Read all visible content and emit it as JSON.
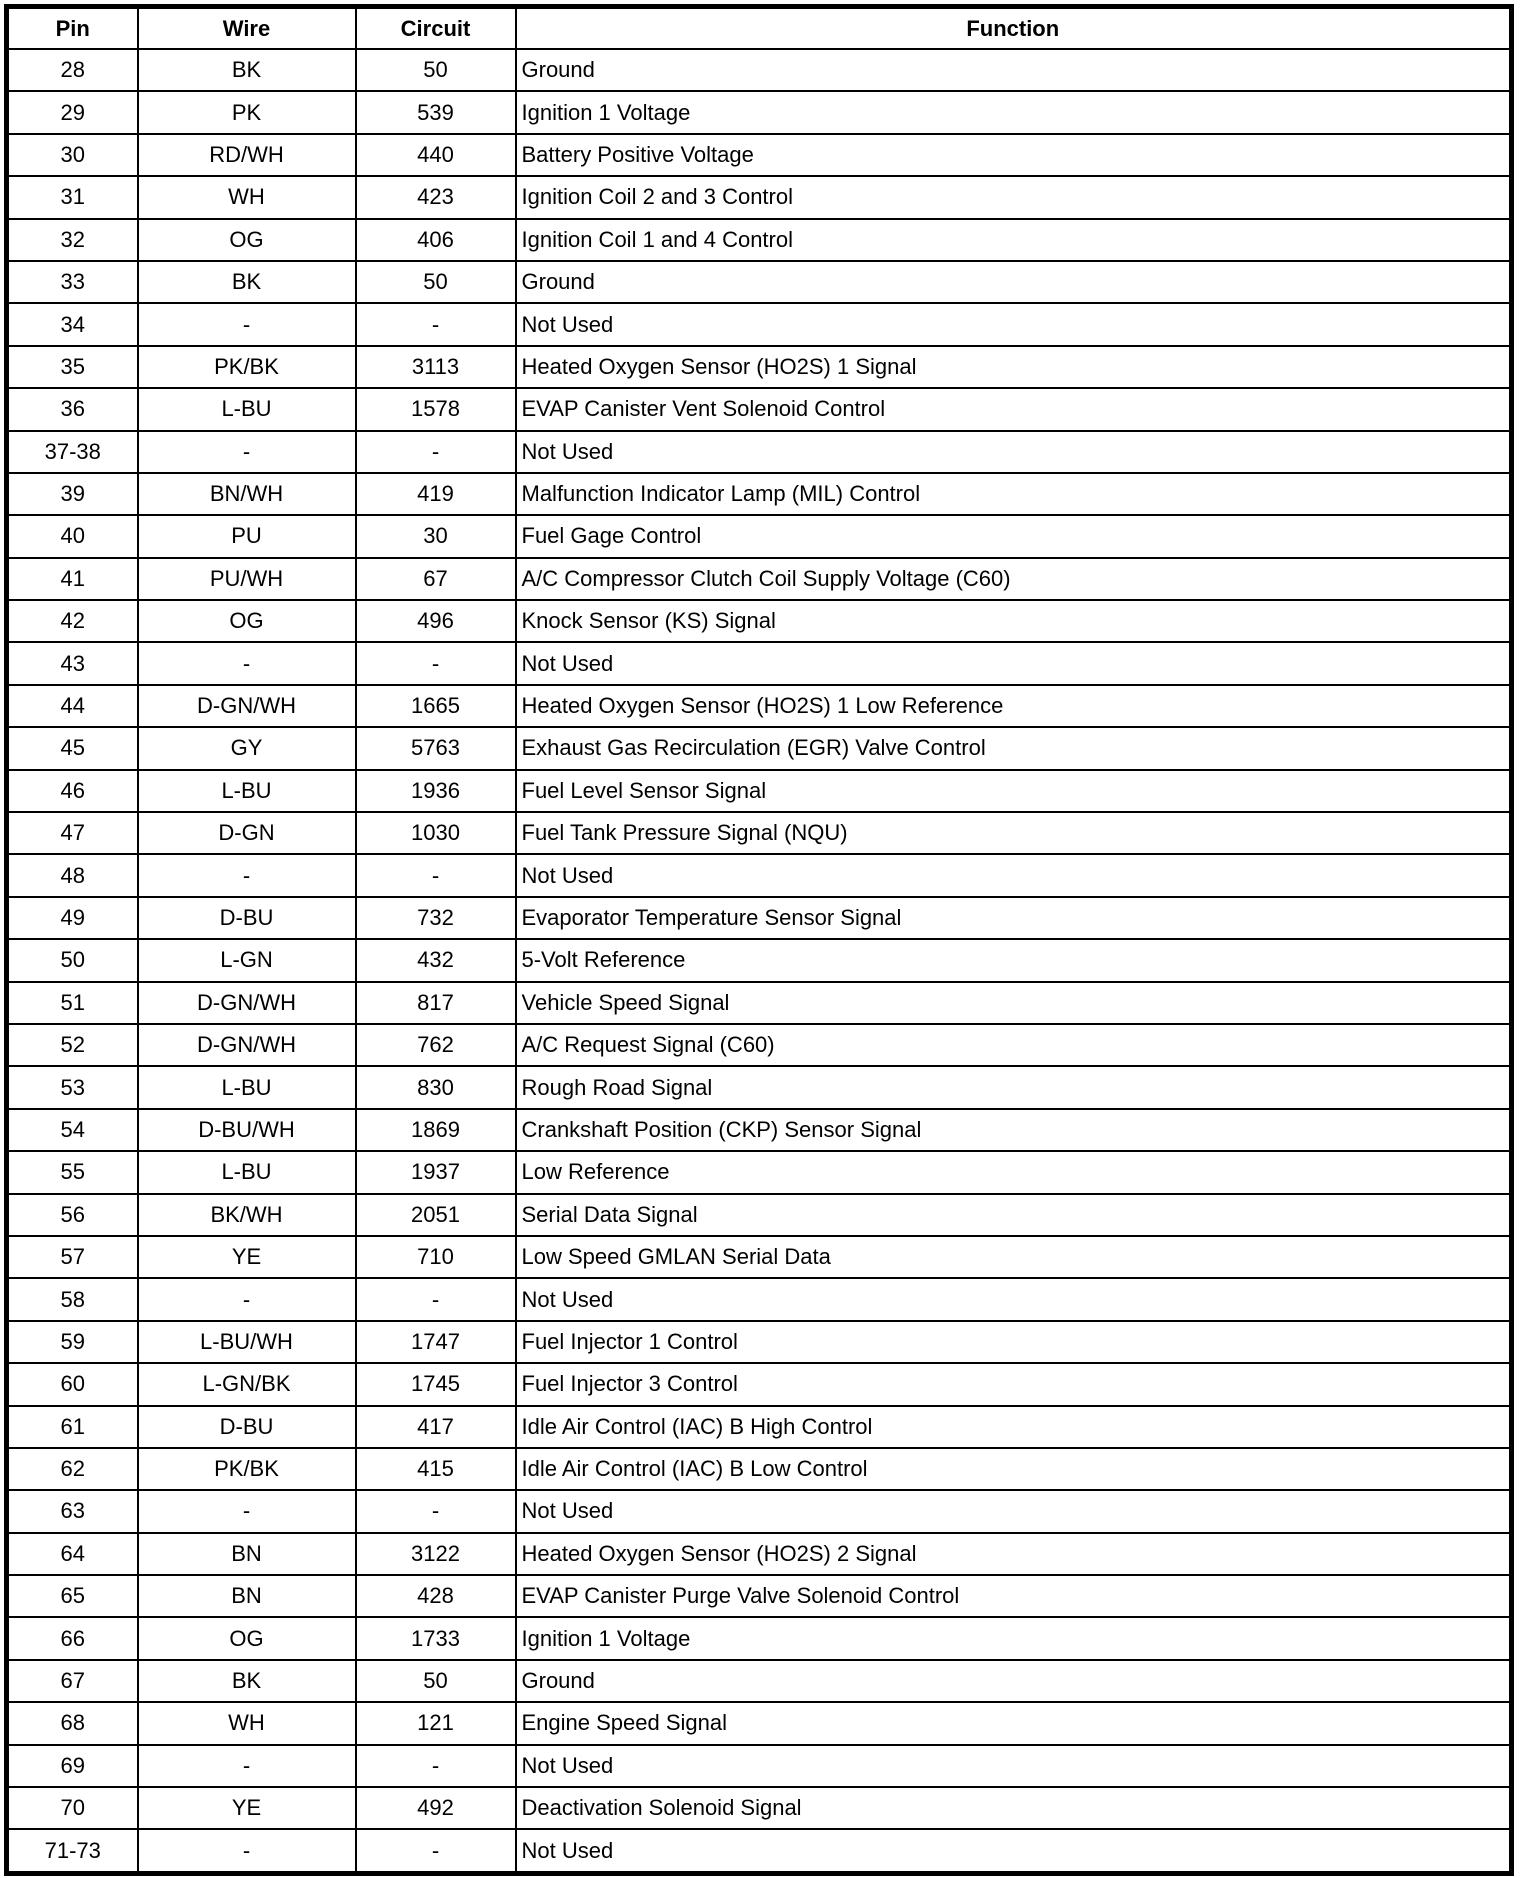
{
  "headers": {
    "pin": "Pin",
    "wire": "Wire",
    "circuit": "Circuit",
    "function": "Function"
  },
  "rows": [
    [
      "28",
      "BK",
      "50",
      "Ground"
    ],
    [
      "29",
      "PK",
      "539",
      "Ignition 1 Voltage"
    ],
    [
      "30",
      "RD/WH",
      "440",
      "Battery Positive Voltage"
    ],
    [
      "31",
      "WH",
      "423",
      "Ignition Coil 2 and 3 Control"
    ],
    [
      "32",
      "OG",
      "406",
      "Ignition Coil 1 and 4 Control"
    ],
    [
      "33",
      "BK",
      "50",
      "Ground"
    ],
    [
      "34",
      "-",
      "-",
      "Not Used"
    ],
    [
      "35",
      "PK/BK",
      "3113",
      "Heated Oxygen Sensor (HO2S) 1 Signal"
    ],
    [
      "36",
      "L-BU",
      "1578",
      "EVAP Canister Vent Solenoid Control"
    ],
    [
      "37-38",
      "-",
      "-",
      "Not Used"
    ],
    [
      "39",
      "BN/WH",
      "419",
      "Malfunction Indicator Lamp (MIL) Control"
    ],
    [
      "40",
      "PU",
      "30",
      "Fuel Gage Control"
    ],
    [
      "41",
      "PU/WH",
      "67",
      "A/C Compressor Clutch Coil Supply Voltage (C60)"
    ],
    [
      "42",
      "OG",
      "496",
      "Knock Sensor (KS) Signal"
    ],
    [
      "43",
      "-",
      "-",
      "Not Used"
    ],
    [
      "44",
      "D-GN/WH",
      "1665",
      "Heated Oxygen Sensor (HO2S) 1 Low Reference"
    ],
    [
      "45",
      "GY",
      "5763",
      "Exhaust Gas Recirculation (EGR) Valve Control"
    ],
    [
      "46",
      "L-BU",
      "1936",
      "Fuel Level Sensor Signal"
    ],
    [
      "47",
      "D-GN",
      "1030",
      "Fuel Tank Pressure Signal (NQU)"
    ],
    [
      "48",
      "-",
      "-",
      "Not Used"
    ],
    [
      "49",
      "D-BU",
      "732",
      "Evaporator Temperature Sensor Signal"
    ],
    [
      "50",
      "L-GN",
      "432",
      "5-Volt Reference"
    ],
    [
      "51",
      "D-GN/WH",
      "817",
      "Vehicle Speed Signal"
    ],
    [
      "52",
      "D-GN/WH",
      "762",
      "A/C Request Signal (C60)"
    ],
    [
      "53",
      "L-BU",
      "830",
      "Rough Road Signal"
    ],
    [
      "54",
      "D-BU/WH",
      "1869",
      "Crankshaft Position (CKP) Sensor Signal"
    ],
    [
      "55",
      "L-BU",
      "1937",
      "Low Reference"
    ],
    [
      "56",
      "BK/WH",
      "2051",
      "Serial Data Signal"
    ],
    [
      "57",
      "YE",
      "710",
      "Low Speed GMLAN Serial Data"
    ],
    [
      "58",
      "-",
      "-",
      "Not Used"
    ],
    [
      "59",
      "L-BU/WH",
      "1747",
      "Fuel Injector 1 Control"
    ],
    [
      "60",
      "L-GN/BK",
      "1745",
      "Fuel Injector 3 Control"
    ],
    [
      "61",
      "D-BU",
      "417",
      "Idle Air Control (IAC) B High Control"
    ],
    [
      "62",
      "PK/BK",
      "415",
      "Idle Air Control (IAC) B Low Control"
    ],
    [
      "63",
      "-",
      "-",
      "Not Used"
    ],
    [
      "64",
      "BN",
      "3122",
      "Heated Oxygen Sensor (HO2S) 2 Signal"
    ],
    [
      "65",
      "BN",
      "428",
      "EVAP Canister Purge Valve Solenoid Control"
    ],
    [
      "66",
      "OG",
      "1733",
      "Ignition 1 Voltage"
    ],
    [
      "67",
      "BK",
      "50",
      "Ground"
    ],
    [
      "68",
      "WH",
      "121",
      "Engine Speed Signal"
    ],
    [
      "69",
      "-",
      "-",
      "Not Used"
    ],
    [
      "70",
      "YE",
      "492",
      "Deactivation Solenoid Signal"
    ],
    [
      "71-73",
      "-",
      "-",
      "Not Used"
    ]
  ]
}
